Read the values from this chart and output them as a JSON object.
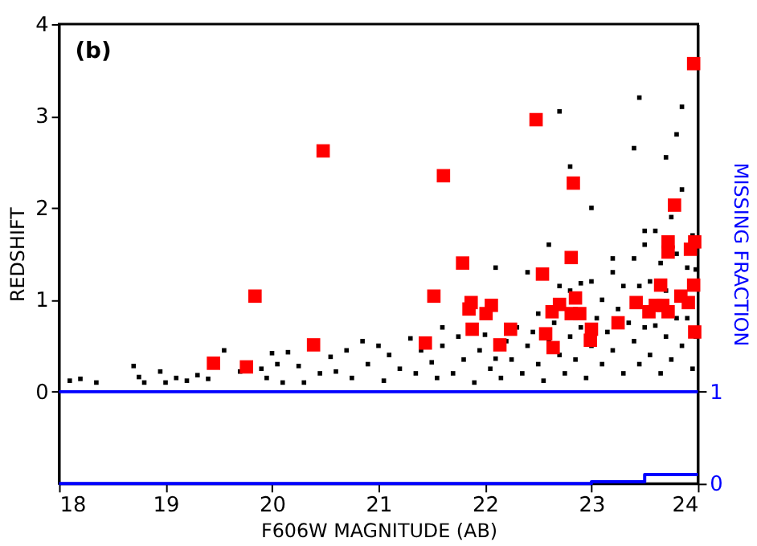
{
  "chart_data": {
    "type": "scatter",
    "xlabel": "F606W MAGNITUDE (AB)",
    "ylabel": "REDSHIFT",
    "y2label": "MISSING FRACTION",
    "annotations": [
      "(b)"
    ],
    "xlim": [
      18,
      24
    ],
    "xticks": [
      18,
      19,
      20,
      21,
      22,
      23,
      24
    ],
    "ylim": [
      -1,
      4
    ],
    "yticks": [
      0,
      1,
      2,
      3,
      4
    ],
    "y2lim": [
      0,
      5
    ],
    "y2ticks": [
      0,
      1
    ],
    "grid": false,
    "ref_lines": [
      {
        "axis": "y",
        "value": 0,
        "color": "#0000ff"
      }
    ],
    "series": [
      {
        "color": "#000000",
        "marker": "square",
        "x": [
          18.1,
          18.2,
          18.35,
          18.7,
          18.75,
          18.8,
          18.95,
          19.0,
          19.1,
          19.2,
          19.3,
          19.4,
          19.55,
          19.7,
          19.9,
          19.95,
          20.0,
          20.05,
          20.1,
          20.15,
          20.25,
          20.3,
          20.45,
          20.55,
          20.6,
          20.7,
          20.75,
          20.85,
          20.9,
          21.0,
          21.05,
          21.1,
          21.2,
          21.3,
          21.35,
          21.4,
          21.5,
          21.55,
          21.6,
          21.7,
          21.75,
          21.8,
          21.9,
          21.95,
          22.0,
          22.05,
          22.1,
          22.15,
          22.2,
          22.25,
          22.3,
          22.35,
          22.4,
          22.45,
          22.5,
          22.5,
          22.55,
          22.6,
          22.65,
          22.7,
          22.7,
          22.75,
          22.8,
          22.8,
          22.85,
          22.9,
          22.9,
          22.95,
          23.0,
          23.0,
          23.05,
          23.1,
          23.1,
          23.15,
          23.2,
          23.2,
          23.25,
          23.3,
          23.3,
          23.35,
          23.4,
          23.4,
          23.45,
          23.45,
          23.5,
          23.5,
          23.55,
          23.55,
          23.6,
          23.6,
          23.65,
          23.65,
          23.7,
          23.7,
          23.75,
          23.75,
          23.8,
          23.8,
          23.85,
          23.85,
          23.9,
          23.9,
          23.95,
          23.95,
          23.98,
          23.98,
          22.7,
          23.45,
          23.85,
          23.4,
          23.0,
          22.8,
          23.7,
          23.5,
          23.8,
          22.4,
          22.1,
          21.6,
          22.6,
          23.2
        ],
        "values": [
          0.12,
          0.14,
          0.1,
          0.28,
          0.16,
          0.1,
          0.22,
          0.1,
          0.15,
          0.12,
          0.18,
          0.14,
          0.45,
          0.22,
          0.25,
          0.15,
          0.42,
          0.3,
          0.1,
          0.43,
          0.28,
          0.1,
          0.2,
          0.38,
          0.22,
          0.45,
          0.15,
          0.55,
          0.3,
          0.5,
          0.12,
          0.4,
          0.25,
          0.58,
          0.2,
          0.45,
          0.32,
          0.15,
          0.5,
          0.2,
          0.6,
          0.35,
          0.1,
          0.45,
          0.62,
          0.25,
          0.36,
          0.15,
          0.55,
          0.35,
          0.7,
          0.2,
          0.5,
          0.65,
          0.3,
          0.85,
          0.12,
          0.55,
          0.75,
          0.4,
          1.15,
          0.2,
          0.6,
          1.1,
          0.35,
          0.7,
          1.18,
          0.15,
          0.5,
          1.2,
          0.8,
          0.3,
          1.0,
          0.65,
          0.45,
          1.3,
          0.9,
          0.2,
          1.15,
          0.75,
          0.55,
          1.45,
          1.15,
          0.3,
          0.7,
          1.6,
          0.4,
          1.2,
          0.72,
          1.75,
          0.2,
          1.4,
          0.6,
          1.1,
          0.35,
          1.9,
          0.8,
          1.5,
          0.5,
          2.2,
          0.8,
          1.35,
          0.25,
          1.7,
          0.6,
          1.33,
          3.05,
          3.2,
          3.1,
          2.65,
          2.0,
          2.45,
          2.55,
          1.75,
          2.8,
          1.3,
          1.35,
          0.7,
          1.6,
          1.45
        ]
      },
      {
        "color": "#ff0000",
        "marker": "square",
        "x": [
          19.45,
          19.76,
          19.84,
          20.39,
          20.48,
          21.44,
          21.52,
          21.61,
          21.79,
          21.87,
          21.85,
          21.88,
          22.06,
          22.01,
          22.14,
          22.24,
          22.48,
          22.54,
          22.57,
          22.64,
          22.63,
          22.7,
          22.83,
          22.81,
          22.85,
          22.81,
          22.89,
          23.0,
          22.99,
          23.25,
          23.42,
          23.54,
          23.6,
          23.67,
          23.72,
          23.65,
          23.72,
          23.72,
          23.78,
          23.84,
          23.91,
          23.93,
          23.97,
          23.96,
          23.97,
          23.96
        ],
        "values": [
          0.31,
          0.27,
          1.04,
          0.51,
          2.62,
          0.53,
          1.04,
          2.35,
          1.4,
          0.97,
          0.9,
          0.68,
          0.94,
          0.85,
          0.51,
          0.68,
          2.96,
          1.28,
          0.63,
          0.48,
          0.87,
          0.95,
          2.27,
          1.46,
          1.02,
          0.85,
          0.85,
          0.68,
          0.56,
          0.75,
          0.97,
          0.87,
          0.94,
          0.94,
          0.87,
          1.16,
          1.63,
          1.52,
          2.03,
          1.04,
          0.97,
          1.55,
          1.63,
          1.16,
          0.65,
          3.57
        ]
      },
      {
        "type": "step",
        "color": "#0000ff",
        "axis": "y2",
        "x": [
          18,
          23,
          23.5,
          24
        ],
        "values": [
          0,
          0.02,
          0.1,
          0.1
        ]
      }
    ]
  }
}
